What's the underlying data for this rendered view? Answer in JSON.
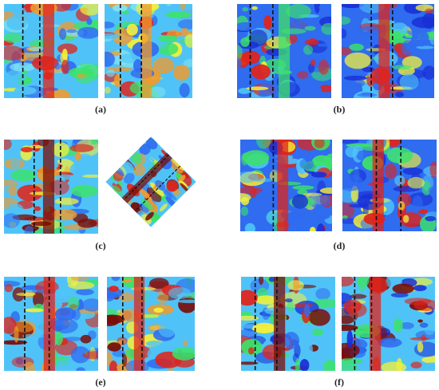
{
  "figure": {
    "panels": [
      {
        "id": "a",
        "label": "(a)",
        "palette": "cyan"
      },
      {
        "id": "b",
        "label": "(b)",
        "palette": "blue"
      },
      {
        "id": "c",
        "label": "(c)",
        "palette": "hot"
      },
      {
        "id": "d",
        "label": "(d)",
        "palette": "blue"
      },
      {
        "id": "e",
        "label": "(e)",
        "palette": "hot"
      },
      {
        "id": "f",
        "label": "(f)",
        "palette": "mixed"
      }
    ]
  },
  "colors": {
    "deep_blue": "#1a2fd6",
    "blue": "#2f6cf0",
    "cyan": "#4fc3f7",
    "light_cyan": "#7fe3f2",
    "green": "#3de26a",
    "yellow": "#f4f03a",
    "orange": "#f39a2a",
    "red": "#e0241b",
    "dark_red": "#7a0d08",
    "dash_line": "#111111"
  }
}
